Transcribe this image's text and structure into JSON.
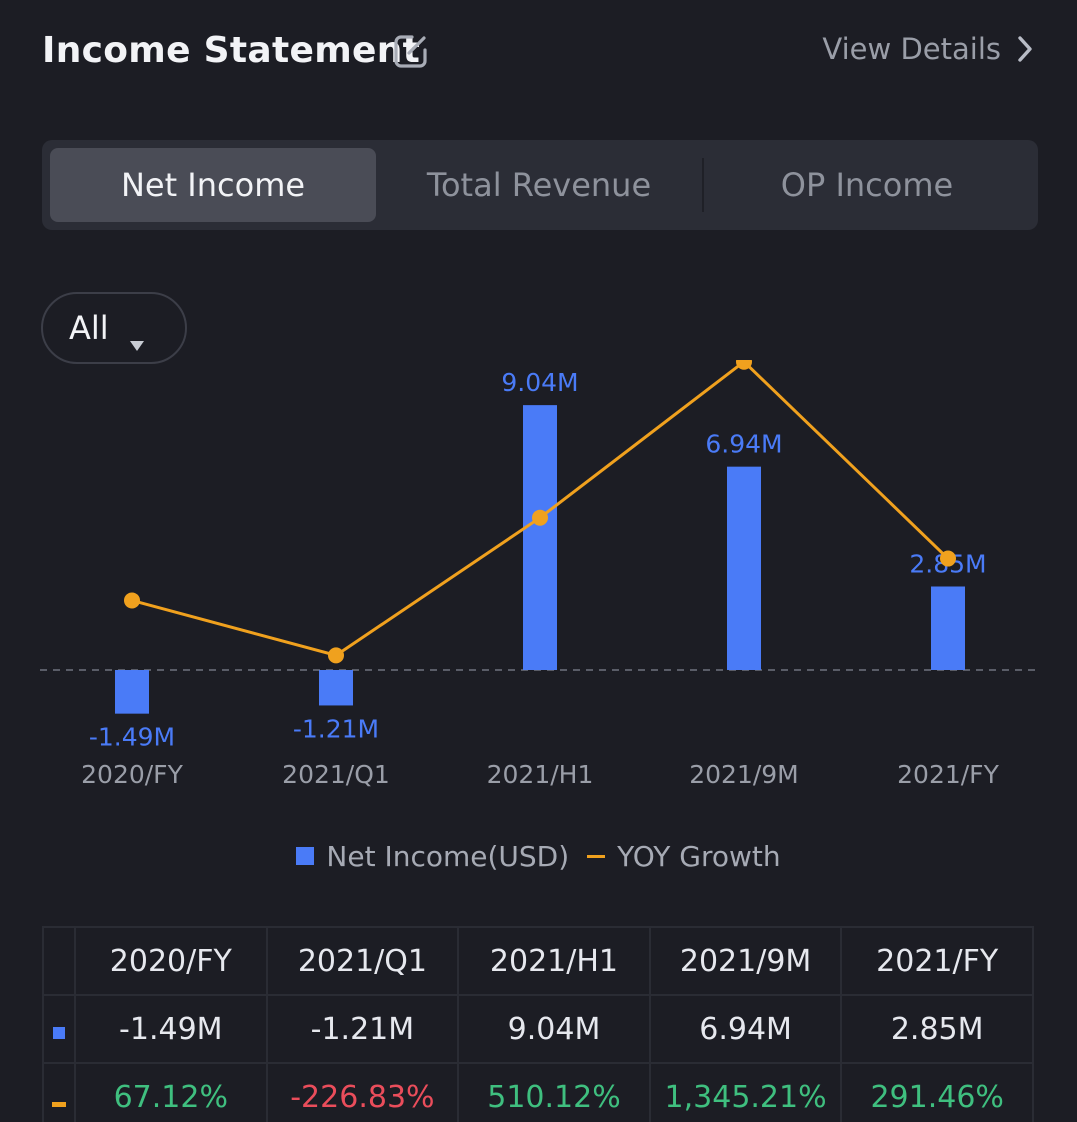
{
  "header": {
    "title": "Income Statement",
    "edit_icon": "edit-icon",
    "view_details": "View Details",
    "chevron_icon": "chevron-right-icon"
  },
  "tabs": [
    {
      "label": "Net Income",
      "active": true
    },
    {
      "label": "Total Revenue",
      "active": false
    },
    {
      "label": "OP Income",
      "active": false
    }
  ],
  "filter": {
    "label": "All",
    "icon": "caret-down-icon"
  },
  "colors": {
    "bar": "#4a7bf7",
    "line": "#f0a11e",
    "positive": "#3fbf7f",
    "negative": "#ea4d5b",
    "background": "#1c1d24"
  },
  "chart_data": {
    "type": "bar",
    "categories": [
      "2020/FY",
      "2021/Q1",
      "2021/H1",
      "2021/9M",
      "2021/FY"
    ],
    "series": [
      {
        "name": "Net Income(USD)",
        "type": "bar",
        "values": [
          -1.49,
          -1.21,
          9.04,
          6.94,
          2.85
        ],
        "labels": [
          "-1.49M",
          "-1.21M",
          "9.04M",
          "6.94M",
          "2.85M"
        ]
      },
      {
        "name": "YOY Growth",
        "type": "line",
        "values": [
          67.12,
          -226.83,
          510.12,
          1345.21,
          291.46
        ]
      }
    ],
    "grid": false,
    "legend": "bottom-center"
  },
  "legend": {
    "bar_label": "Net Income(USD)",
    "line_label": "YOY Growth"
  },
  "table": {
    "headers": [
      "2020/FY",
      "2021/Q1",
      "2021/H1",
      "2021/9M",
      "2021/FY"
    ],
    "net_income": [
      "-1.49M",
      "-1.21M",
      "9.04M",
      "6.94M",
      "2.85M"
    ],
    "yoy_growth": [
      "67.12%",
      "-226.83%",
      "510.12%",
      "1,345.21%",
      "291.46%"
    ]
  }
}
